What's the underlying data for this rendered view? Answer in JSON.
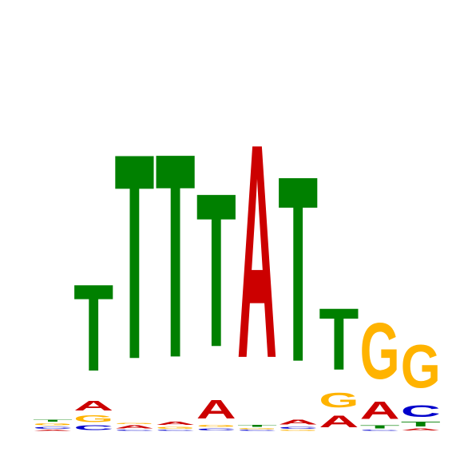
{
  "chart_data": {
    "type": "sequence-logo",
    "alphabet": [
      "A",
      "C",
      "G",
      "T"
    ],
    "colors": {
      "A": "#cc0000",
      "C": "#0000cc",
      "G": "#ffb300",
      "T": "#008000"
    },
    "ylim": [
      0,
      2
    ],
    "positions": [
      {
        "index": 1,
        "stack": [
          [
            "A",
            0.01
          ],
          [
            "C",
            0.02
          ],
          [
            "G",
            0.02
          ],
          [
            "T",
            0.02
          ]
        ]
      },
      {
        "index": 2,
        "stack": [
          [
            "C",
            0.04
          ],
          [
            "G",
            0.06
          ],
          [
            "A",
            0.09
          ],
          [
            "T",
            0.79
          ]
        ]
      },
      {
        "index": 3,
        "stack": [
          [
            "C",
            0.01
          ],
          [
            "A",
            0.03
          ],
          [
            "G",
            0.01
          ],
          [
            "T",
            1.87
          ]
        ]
      },
      {
        "index": 4,
        "stack": [
          [
            "C",
            0.01
          ],
          [
            "G",
            0.02
          ],
          [
            "A",
            0.03
          ],
          [
            "T",
            1.86
          ]
        ]
      },
      {
        "index": 5,
        "stack": [
          [
            "C",
            0.02
          ],
          [
            "G",
            0.02
          ],
          [
            "A",
            0.17
          ],
          [
            "T",
            1.4
          ]
        ]
      },
      {
        "index": 6,
        "stack": [
          [
            "C",
            0.01
          ],
          [
            "G",
            0.01
          ],
          [
            "T",
            0.02
          ],
          [
            "A",
            1.95
          ]
        ]
      },
      {
        "index": 7,
        "stack": [
          [
            "G",
            0.01
          ],
          [
            "C",
            0.02
          ],
          [
            "A",
            0.04
          ],
          [
            "T",
            1.69
          ]
        ]
      },
      {
        "index": 8,
        "stack": [
          [
            "A",
            0.11
          ],
          [
            "G",
            0.13
          ],
          [
            "T",
            0.56
          ]
        ]
      },
      {
        "index": 9,
        "stack": [
          [
            "C",
            0.01
          ],
          [
            "T",
            0.03
          ],
          [
            "A",
            0.16
          ],
          [
            "G",
            0.51
          ]
        ]
      },
      {
        "index": 10,
        "stack": [
          [
            "A",
            0.02
          ],
          [
            "T",
            0.04
          ],
          [
            "C",
            0.11
          ],
          [
            "G",
            0.39
          ]
        ]
      }
    ]
  }
}
